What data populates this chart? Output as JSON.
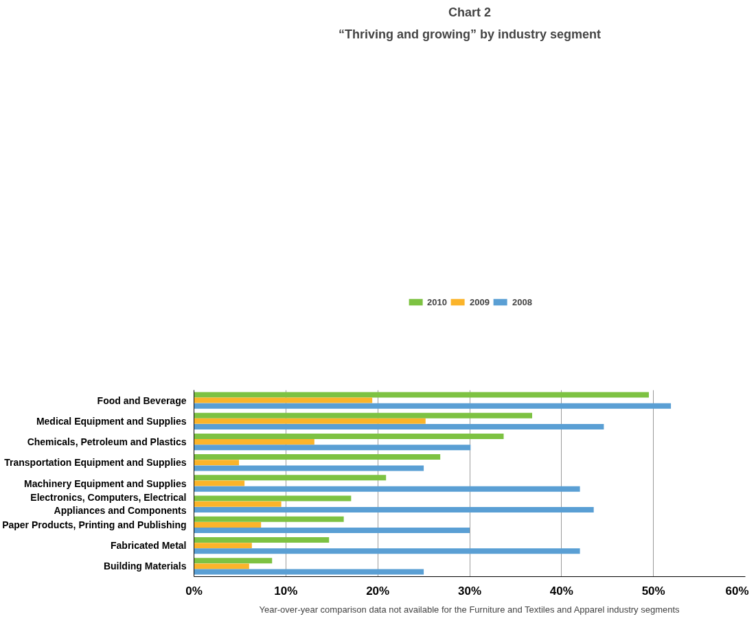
{
  "chart_data": {
    "type": "bar",
    "orientation": "horizontal",
    "title": "Chart 2",
    "subtitle": "“Thriving and growing” by industry segment",
    "categories": [
      "Food and Beverage",
      "Medical Equipment and Supplies",
      "Chemicals, Petroleum and Plastics",
      "Transportation Equipment and Supplies",
      "Machinery Equipment and Supplies",
      "Electronics, Computers, Electrical\nAppliances and Components",
      "Paper Products, Printing and Publishing",
      "Fabricated Metal",
      "Building Materials"
    ],
    "series": [
      {
        "name": "2010",
        "color": "#7dc242",
        "values": [
          49.5,
          36.8,
          33.7,
          26.8,
          20.9,
          17.1,
          16.3,
          14.7,
          8.5
        ]
      },
      {
        "name": "2009",
        "color": "#fbb42a",
        "values": [
          19.4,
          25.2,
          13.1,
          4.9,
          5.5,
          9.5,
          7.3,
          6.3,
          6.0
        ]
      },
      {
        "name": "2008",
        "color": "#5a9fd4",
        "values": [
          51.9,
          44.6,
          30.1,
          25.0,
          42.0,
          43.5,
          30.0,
          42.0,
          25.0
        ]
      }
    ],
    "xlim": [
      0,
      60
    ],
    "xticks": [
      {
        "value": 0,
        "label": "0%"
      },
      {
        "value": 10,
        "label": "10%"
      },
      {
        "value": 20,
        "label": "20%"
      },
      {
        "value": 30,
        "label": "30%"
      },
      {
        "value": 40,
        "label": "40%"
      },
      {
        "value": 50,
        "label": "50%"
      },
      {
        "value": 60,
        "label": "60%"
      }
    ],
    "grid": "x",
    "legend": "top",
    "annotations": [
      "Year-over-year comparison data not available for the Furniture and Textiles and Apparel industry segments"
    ]
  }
}
